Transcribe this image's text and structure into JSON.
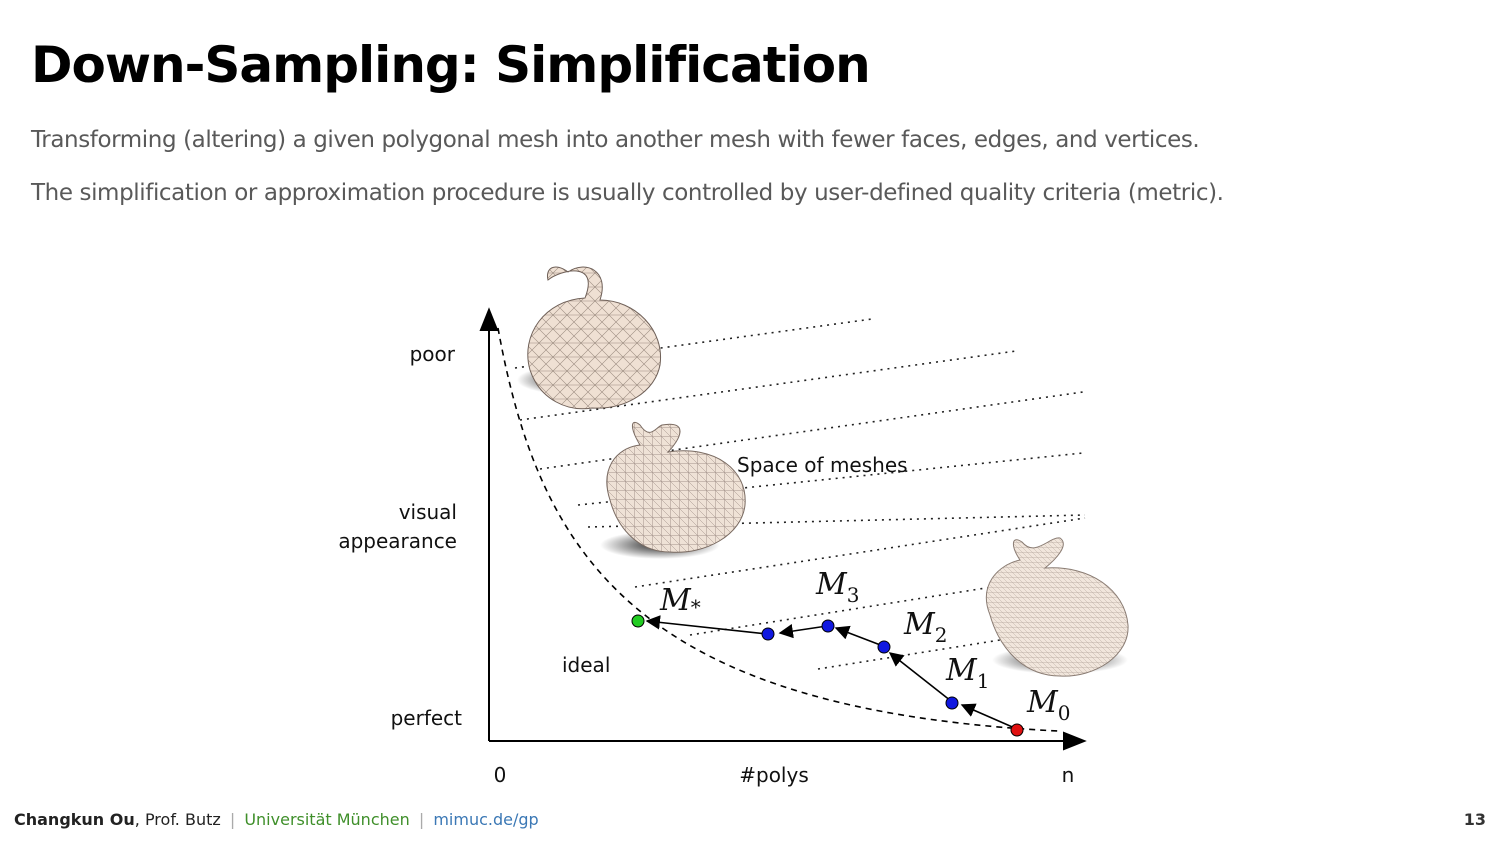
{
  "slide": {
    "title": "Down-Sampling: Simplification",
    "lines": [
      "Transforming (altering) a given polygonal mesh into another mesh with fewer faces, edges, and vertices.",
      "The simplification or approximation procedure is usually controlled by user-defined quality criteria (metric)."
    ]
  },
  "figure": {
    "y_labels": {
      "poor": "poor",
      "visual": "visual",
      "appearance": "appearance",
      "perfect": "perfect"
    },
    "x_labels": {
      "zero": "0",
      "polys": "#polys",
      "n": "n"
    },
    "space_label": "Space of meshes",
    "ideal_label": "ideal",
    "meshes": [
      {
        "base": "M",
        "sub": "0",
        "color": "#e01010"
      },
      {
        "base": "M",
        "sub": "1",
        "color": "#1018e0"
      },
      {
        "base": "M",
        "sub": "2",
        "color": "#1018e0"
      },
      {
        "base": "M",
        "sub": "3",
        "color": "#1018e0"
      },
      {
        "base": "M",
        "sub": "*",
        "color": "#22cc22"
      }
    ],
    "images": [
      "bunny-coarse",
      "bunny-medium",
      "bunny-fine"
    ]
  },
  "footer": {
    "author": "Changkun Ou",
    "coauthor": ", Prof. Butz",
    "sep": "|",
    "university": "Universität München",
    "link": "mimuc.de/gp"
  },
  "page_number": "13"
}
